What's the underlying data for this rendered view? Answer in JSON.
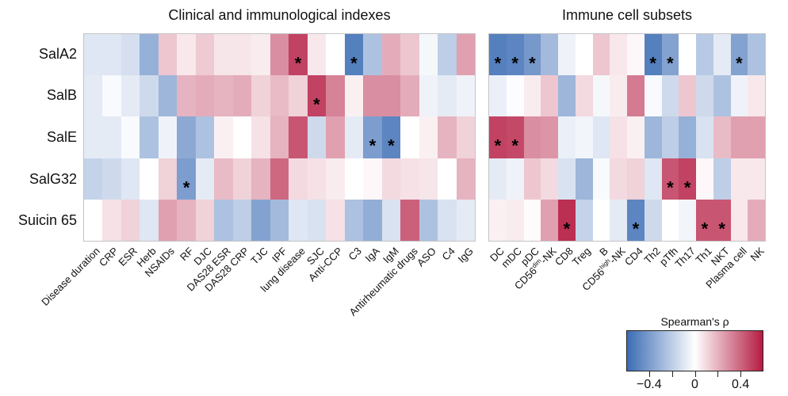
{
  "figure": {
    "panel_titles": {
      "left": "Clinical and immunological indexes",
      "right": "Immune cell subsets"
    },
    "colorbar": {
      "title": "Spearman's ρ",
      "tick_labels": [
        "−0.4",
        "0",
        "0.4"
      ],
      "tick_values": [
        -0.4,
        0,
        0.4
      ],
      "minor_tick_values": [
        -0.4,
        -0.2,
        0,
        0.2,
        0.4
      ],
      "domain": [
        -0.6,
        0.6
      ],
      "color_neg": "#3B6CB4",
      "color_mid": "#FFFFFF",
      "color_pos": "#B51C42"
    }
  },
  "chart_data": {
    "type": "heatmap",
    "title": "Correlation heatmaps of salivary/bacterial items vs clinical indexes and immune cell subsets",
    "value_meaning": "Spearman's ρ, asterisk = statistically significant",
    "rows": [
      "SalA2",
      "SalB",
      "SalE",
      "SalG32",
      "Suicin 65"
    ],
    "panels": [
      {
        "title": "Clinical and immunological indexes",
        "columns": [
          "Disease duration",
          "CRP",
          "ESR",
          "Herb",
          "NSAIDs",
          "RF",
          "DJC",
          "DAS28 ESR",
          "DAS28 CRP",
          "TJC",
          "IPF",
          "lung disease",
          "SJC",
          "Anti-CCP",
          "C3",
          "IgA",
          "IgM",
          "Antirheumatic drugs",
          "ASO",
          "C4",
          "IgG"
        ],
        "values": [
          [
            -0.1,
            -0.1,
            -0.13,
            -0.32,
            0.15,
            0.06,
            0.14,
            0.07,
            0.07,
            0.05,
            0.3,
            0.5,
            0.06,
            0.0,
            -0.52,
            -0.25,
            0.22,
            0.15,
            -0.03,
            -0.2,
            0.25
          ],
          [
            -0.08,
            -0.02,
            -0.08,
            -0.15,
            -0.3,
            0.2,
            0.22,
            0.2,
            0.22,
            0.12,
            0.18,
            0.12,
            0.5,
            0.33,
            0.04,
            0.3,
            0.3,
            0.22,
            -0.05,
            -0.08,
            -0.05
          ],
          [
            -0.08,
            -0.08,
            -0.02,
            -0.25,
            -0.05,
            -0.35,
            -0.25,
            0.04,
            0.0,
            0.08,
            0.2,
            0.45,
            -0.15,
            0.25,
            -0.08,
            -0.4,
            -0.5,
            0.0,
            0.04,
            0.2,
            0.12
          ],
          [
            -0.18,
            -0.15,
            -0.1,
            0.0,
            0.12,
            -0.4,
            -0.08,
            0.18,
            0.12,
            0.2,
            0.4,
            0.1,
            0.08,
            0.05,
            0.0,
            0.02,
            0.1,
            0.08,
            0.07,
            0.0,
            0.2
          ],
          [
            0.0,
            0.08,
            0.12,
            -0.1,
            0.25,
            0.2,
            0.12,
            -0.25,
            -0.2,
            -0.38,
            -0.28,
            -0.1,
            -0.12,
            0.08,
            -0.25,
            -0.33,
            -0.12,
            0.42,
            -0.25,
            -0.12,
            -0.08
          ]
        ],
        "stars": [
          [
            11,
            14
          ],
          [
            12
          ],
          [
            15,
            16
          ],
          [
            5
          ],
          []
        ]
      },
      {
        "title": "Immune cell subsets",
        "columns": [
          "DC",
          "mDC",
          "pDC",
          "CD56^dim^-NK",
          "CD8",
          "Treg",
          "B",
          "CD56^high^-NK",
          "CD4",
          "Th2",
          "pTfh",
          "Th17",
          "Th1",
          "NKT",
          "Plasma cell",
          "NK"
        ],
        "values": [
          [
            -0.52,
            -0.5,
            -0.42,
            -0.28,
            -0.05,
            0.0,
            0.15,
            0.06,
            0.02,
            -0.52,
            -0.38,
            0.0,
            -0.22,
            -0.08,
            -0.38,
            -0.25
          ],
          [
            -0.06,
            -0.01,
            0.05,
            0.15,
            -0.3,
            0.1,
            -0.03,
            0.05,
            0.35,
            -0.02,
            -0.15,
            0.15,
            -0.15,
            -0.25,
            -0.05,
            0.06
          ],
          [
            0.5,
            0.48,
            0.3,
            0.28,
            -0.06,
            -0.04,
            -0.1,
            0.08,
            0.04,
            -0.3,
            -0.2,
            -0.32,
            -0.12,
            0.18,
            0.25,
            0.25
          ],
          [
            -0.08,
            -0.05,
            0.15,
            0.1,
            -0.12,
            -0.3,
            -0.02,
            0.1,
            0.12,
            -0.1,
            0.45,
            0.5,
            0.02,
            -0.2,
            0.06,
            0.06
          ],
          [
            0.04,
            0.05,
            0.01,
            0.25,
            0.55,
            -0.18,
            0.0,
            -0.08,
            -0.5,
            -0.15,
            0.0,
            -0.04,
            0.45,
            0.45,
            0.06,
            0.22
          ]
        ],
        "stars": [
          [
            0,
            1,
            2,
            9,
            10,
            14
          ],
          [],
          [
            0,
            1
          ],
          [
            10,
            11
          ],
          [
            4,
            8,
            12,
            13
          ]
        ]
      }
    ],
    "legend": {
      "title": "Spearman's ρ",
      "position": "bottom-right",
      "range": [
        -0.6,
        0.6
      ],
      "labeled_ticks": [
        -0.4,
        0,
        0.4
      ]
    }
  }
}
